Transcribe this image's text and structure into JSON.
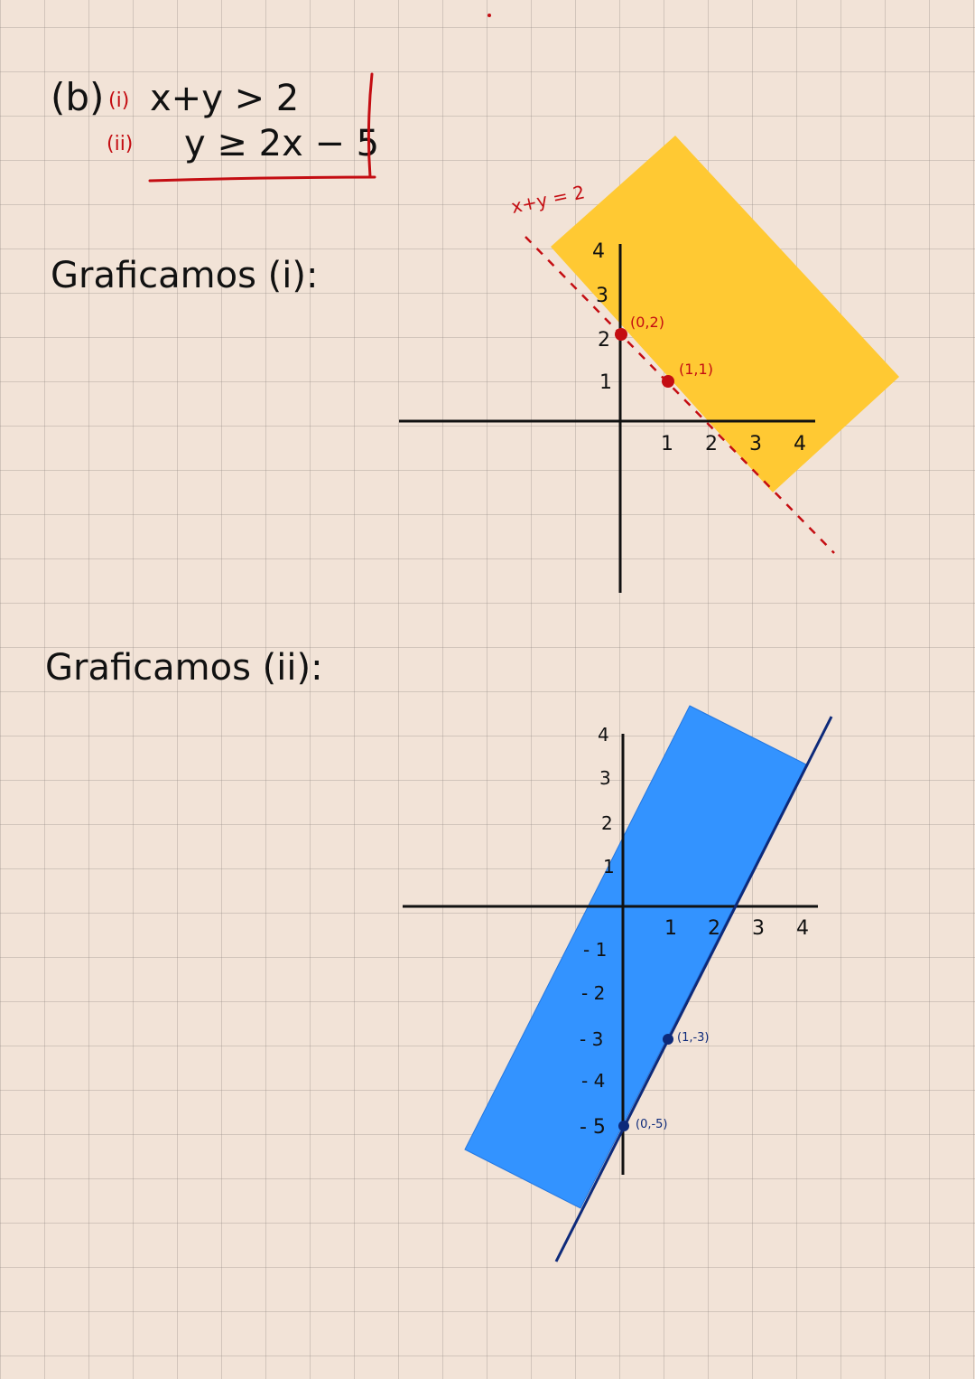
{
  "problem": {
    "part_label": "(b)",
    "ineq1_label": "(i)",
    "ineq1_text": "x+y > 2",
    "ineq2_label": "(ii)",
    "ineq2_text": "y ≥ 2x − 5"
  },
  "graph1": {
    "heading": "Graficamos (i):",
    "line_label": "x+y = 2",
    "x_ticks": [
      "1",
      "2",
      "3",
      "4"
    ],
    "y_ticks": [
      "1",
      "2",
      "3",
      "4"
    ],
    "points": [
      {
        "label": "(0,2)",
        "x": 0,
        "y": 2
      },
      {
        "label": "(1,1)",
        "x": 1,
        "y": 1
      }
    ],
    "boundary_style": "dashed",
    "shaded_region": "above the line x+y=2",
    "colors": {
      "shade": "#ffc933",
      "line": "#c40d12"
    }
  },
  "graph2": {
    "heading": "Graficamos (ii):",
    "x_ticks": [
      "1",
      "2",
      "3",
      "4"
    ],
    "y_ticks_positive": [
      "1",
      "2",
      "3",
      "4"
    ],
    "y_ticks_negative": [
      "- 1",
      "- 2",
      "- 3",
      "- 4",
      "- 5"
    ],
    "points": [
      {
        "label": "(1,-3)",
        "x": 1,
        "y": -3
      },
      {
        "label": "(0,-5)",
        "x": 0,
        "y": -5
      }
    ],
    "boundary_style": "solid",
    "shaded_region": "above the line y=2x-5",
    "colors": {
      "shade": "#3393ff",
      "line": "#0d2a7a"
    }
  }
}
